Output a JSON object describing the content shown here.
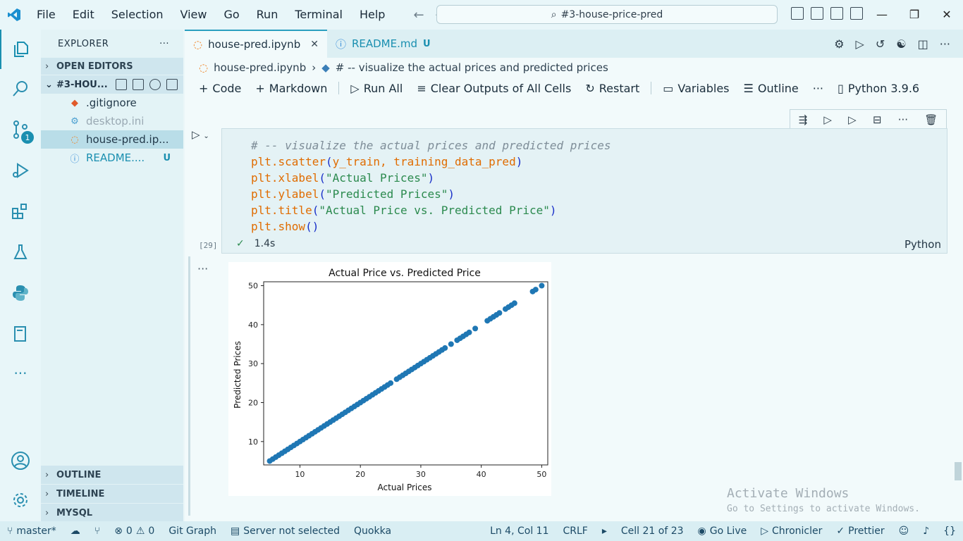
{
  "window": {
    "menu": [
      "File",
      "Edit",
      "Selection",
      "View",
      "Go",
      "Run",
      "Terminal",
      "Help"
    ],
    "search_text": "#3-house-price-pred"
  },
  "activity": {
    "scm_badge": "1"
  },
  "sidebar": {
    "title": "EXPLORER",
    "open_editors": "OPEN EDITORS",
    "folder": "#3-HOU...",
    "files": [
      {
        "name": ".gitignore",
        "icon": "git-icon"
      },
      {
        "name": "desktop.ini",
        "icon": "gear-icon"
      },
      {
        "name": "house-pred.ip...",
        "icon": "jupyter-icon"
      },
      {
        "name": "README....",
        "icon": "info-icon",
        "status": "U"
      }
    ],
    "bottom_sections": [
      "OUTLINE",
      "TIMELINE",
      "MYSQL"
    ]
  },
  "tabs": [
    {
      "label": "house-pred.ipynb"
    },
    {
      "label": "README.md",
      "status": "U"
    }
  ],
  "breadcrumb": {
    "file": "house-pred.ipynb",
    "symbol": "# -- visualize the actual prices and predicted prices"
  },
  "toolbar": {
    "code": "Code",
    "markdown": "Markdown",
    "run_all": "Run All",
    "clear_outputs": "Clear Outputs of All Cells",
    "restart": "Restart",
    "variables": "Variables",
    "outline": "Outline",
    "kernel": "Python 3.9.6"
  },
  "cell": {
    "code_lines": [
      "# -- visualize the actual prices and predicted prices",
      "plt.scatter(y_train, training_data_pred)",
      "plt.xlabel(\"Actual Prices\")",
      "plt.ylabel(\"Predicted Prices\")",
      "plt.title(\"Actual Price vs. Predicted Price\")",
      "plt.show()"
    ],
    "exec_count": "[29]",
    "duration": "1.4s",
    "language": "Python"
  },
  "chart_data": {
    "type": "scatter",
    "title": "Actual Price vs. Predicted Price",
    "xlabel": "Actual Prices",
    "ylabel": "Predicted Prices",
    "xlim": [
      4,
      51
    ],
    "ylim": [
      4,
      51
    ],
    "xticks": [
      10,
      20,
      30,
      40,
      50
    ],
    "yticks": [
      10,
      20,
      30,
      40,
      50
    ],
    "color": "#1f77b4",
    "points": [
      [
        5,
        5
      ],
      [
        5.5,
        5.5
      ],
      [
        6,
        6
      ],
      [
        6.5,
        6.5
      ],
      [
        7,
        7
      ],
      [
        7.5,
        7.5
      ],
      [
        8,
        8
      ],
      [
        8.5,
        8.5
      ],
      [
        9,
        9
      ],
      [
        9.5,
        9.5
      ],
      [
        10,
        10
      ],
      [
        10.5,
        10.5
      ],
      [
        11,
        11
      ],
      [
        11.5,
        11.5
      ],
      [
        12,
        12
      ],
      [
        12.5,
        12.5
      ],
      [
        13,
        13
      ],
      [
        13.5,
        13.5
      ],
      [
        14,
        14
      ],
      [
        14.5,
        14.5
      ],
      [
        15,
        15
      ],
      [
        15.5,
        15.5
      ],
      [
        16,
        16
      ],
      [
        16.5,
        16.5
      ],
      [
        17,
        17
      ],
      [
        17.5,
        17.5
      ],
      [
        18,
        18
      ],
      [
        18.5,
        18.5
      ],
      [
        19,
        19
      ],
      [
        19.5,
        19.5
      ],
      [
        20,
        20
      ],
      [
        20.5,
        20.5
      ],
      [
        21,
        21
      ],
      [
        21.5,
        21.5
      ],
      [
        22,
        22
      ],
      [
        22.5,
        22.5
      ],
      [
        23,
        23
      ],
      [
        23.5,
        23.5
      ],
      [
        24,
        24
      ],
      [
        24.5,
        24.5
      ],
      [
        25,
        25
      ],
      [
        26,
        26
      ],
      [
        26.5,
        26.5
      ],
      [
        27,
        27
      ],
      [
        27.5,
        27.5
      ],
      [
        28,
        28
      ],
      [
        28.5,
        28.5
      ],
      [
        29,
        29
      ],
      [
        29.5,
        29.5
      ],
      [
        30,
        30
      ],
      [
        30.5,
        30.5
      ],
      [
        31,
        31
      ],
      [
        31.5,
        31.5
      ],
      [
        32,
        32
      ],
      [
        32.5,
        32.5
      ],
      [
        33,
        33
      ],
      [
        33.5,
        33.5
      ],
      [
        34,
        34
      ],
      [
        35,
        35
      ],
      [
        36,
        36
      ],
      [
        36.5,
        36.5
      ],
      [
        37,
        37
      ],
      [
        37.5,
        37.5
      ],
      [
        38,
        38
      ],
      [
        39,
        39
      ],
      [
        41,
        41
      ],
      [
        41.5,
        41.5
      ],
      [
        42,
        42
      ],
      [
        42.5,
        42.5
      ],
      [
        43,
        43
      ],
      [
        44,
        44
      ],
      [
        44.5,
        44.5
      ],
      [
        45,
        45
      ],
      [
        45.5,
        45.5
      ],
      [
        48.5,
        48.5
      ],
      [
        49,
        49
      ],
      [
        50,
        50
      ]
    ]
  },
  "watermark": {
    "line1": "Activate Windows",
    "line2": "Go to Settings to activate Windows."
  },
  "status": {
    "branch": "master*",
    "errors": "0",
    "warnings": "0",
    "git_graph": "Git Graph",
    "server": "Server not selected",
    "quokka": "Quokka",
    "position": "Ln 4, Col 11",
    "eol": "CRLF",
    "cell": "Cell 21 of 23",
    "go_live": "Go Live",
    "chronicler": "Chronicler",
    "prettier": "Prettier"
  }
}
